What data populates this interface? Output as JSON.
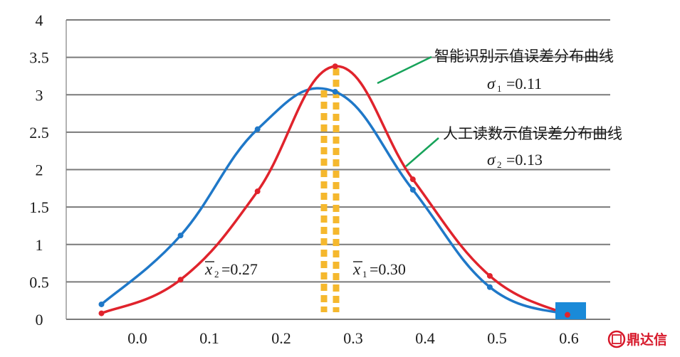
{
  "chart_data": {
    "type": "line",
    "x": [
      -0.05,
      0.06,
      0.167,
      0.275,
      0.383,
      0.49,
      0.598
    ],
    "series": [
      {
        "name": "智能识别示值误差分布曲线",
        "values": [
          0.08,
          0.53,
          1.71,
          3.38,
          1.87,
          0.58,
          0.06
        ],
        "color": "#e0232c",
        "sigma": "0.11"
      },
      {
        "name": "人工读数示值误差分布曲线",
        "values": [
          0.2,
          1.12,
          2.54,
          3.04,
          1.73,
          0.43,
          0.06
        ],
        "color": "#1f78c8",
        "sigma": "0.13"
      }
    ],
    "xticks": [
      "0.0",
      "0.1",
      "0.2",
      "0.3",
      "0.4",
      "0.5",
      "0.6"
    ],
    "yticks": [
      "0",
      "0.5",
      "1",
      "1.5",
      "2",
      "2.5",
      "3",
      "3.5",
      "4"
    ],
    "ylim": [
      0,
      4
    ],
    "grid": "horizontal",
    "mean_lines": [
      {
        "x": 0.27,
        "label": "=0.27",
        "sub": "2",
        "color": "#f5b82e"
      },
      {
        "x": 0.3,
        "label": "=0.30",
        "sub": "1",
        "color": "#f5b82e"
      }
    ],
    "annotations": [
      {
        "series": 0,
        "text": "智能识别示值误差分布曲线",
        "sigma_label": "=0.11",
        "sigma_sub": "1",
        "leader_color": "#17a35a"
      },
      {
        "series": 1,
        "text": "人工读数示值误差分布曲线",
        "sigma_label": "=0.13",
        "sigma_sub": "2",
        "leader_color": "#17a35a"
      }
    ],
    "marker_color": "#1a8ad8"
  },
  "symbols": {
    "sigma": "σ",
    "x": "x"
  },
  "logo": {
    "text": "鼎达信",
    "glyph": "鼎"
  }
}
